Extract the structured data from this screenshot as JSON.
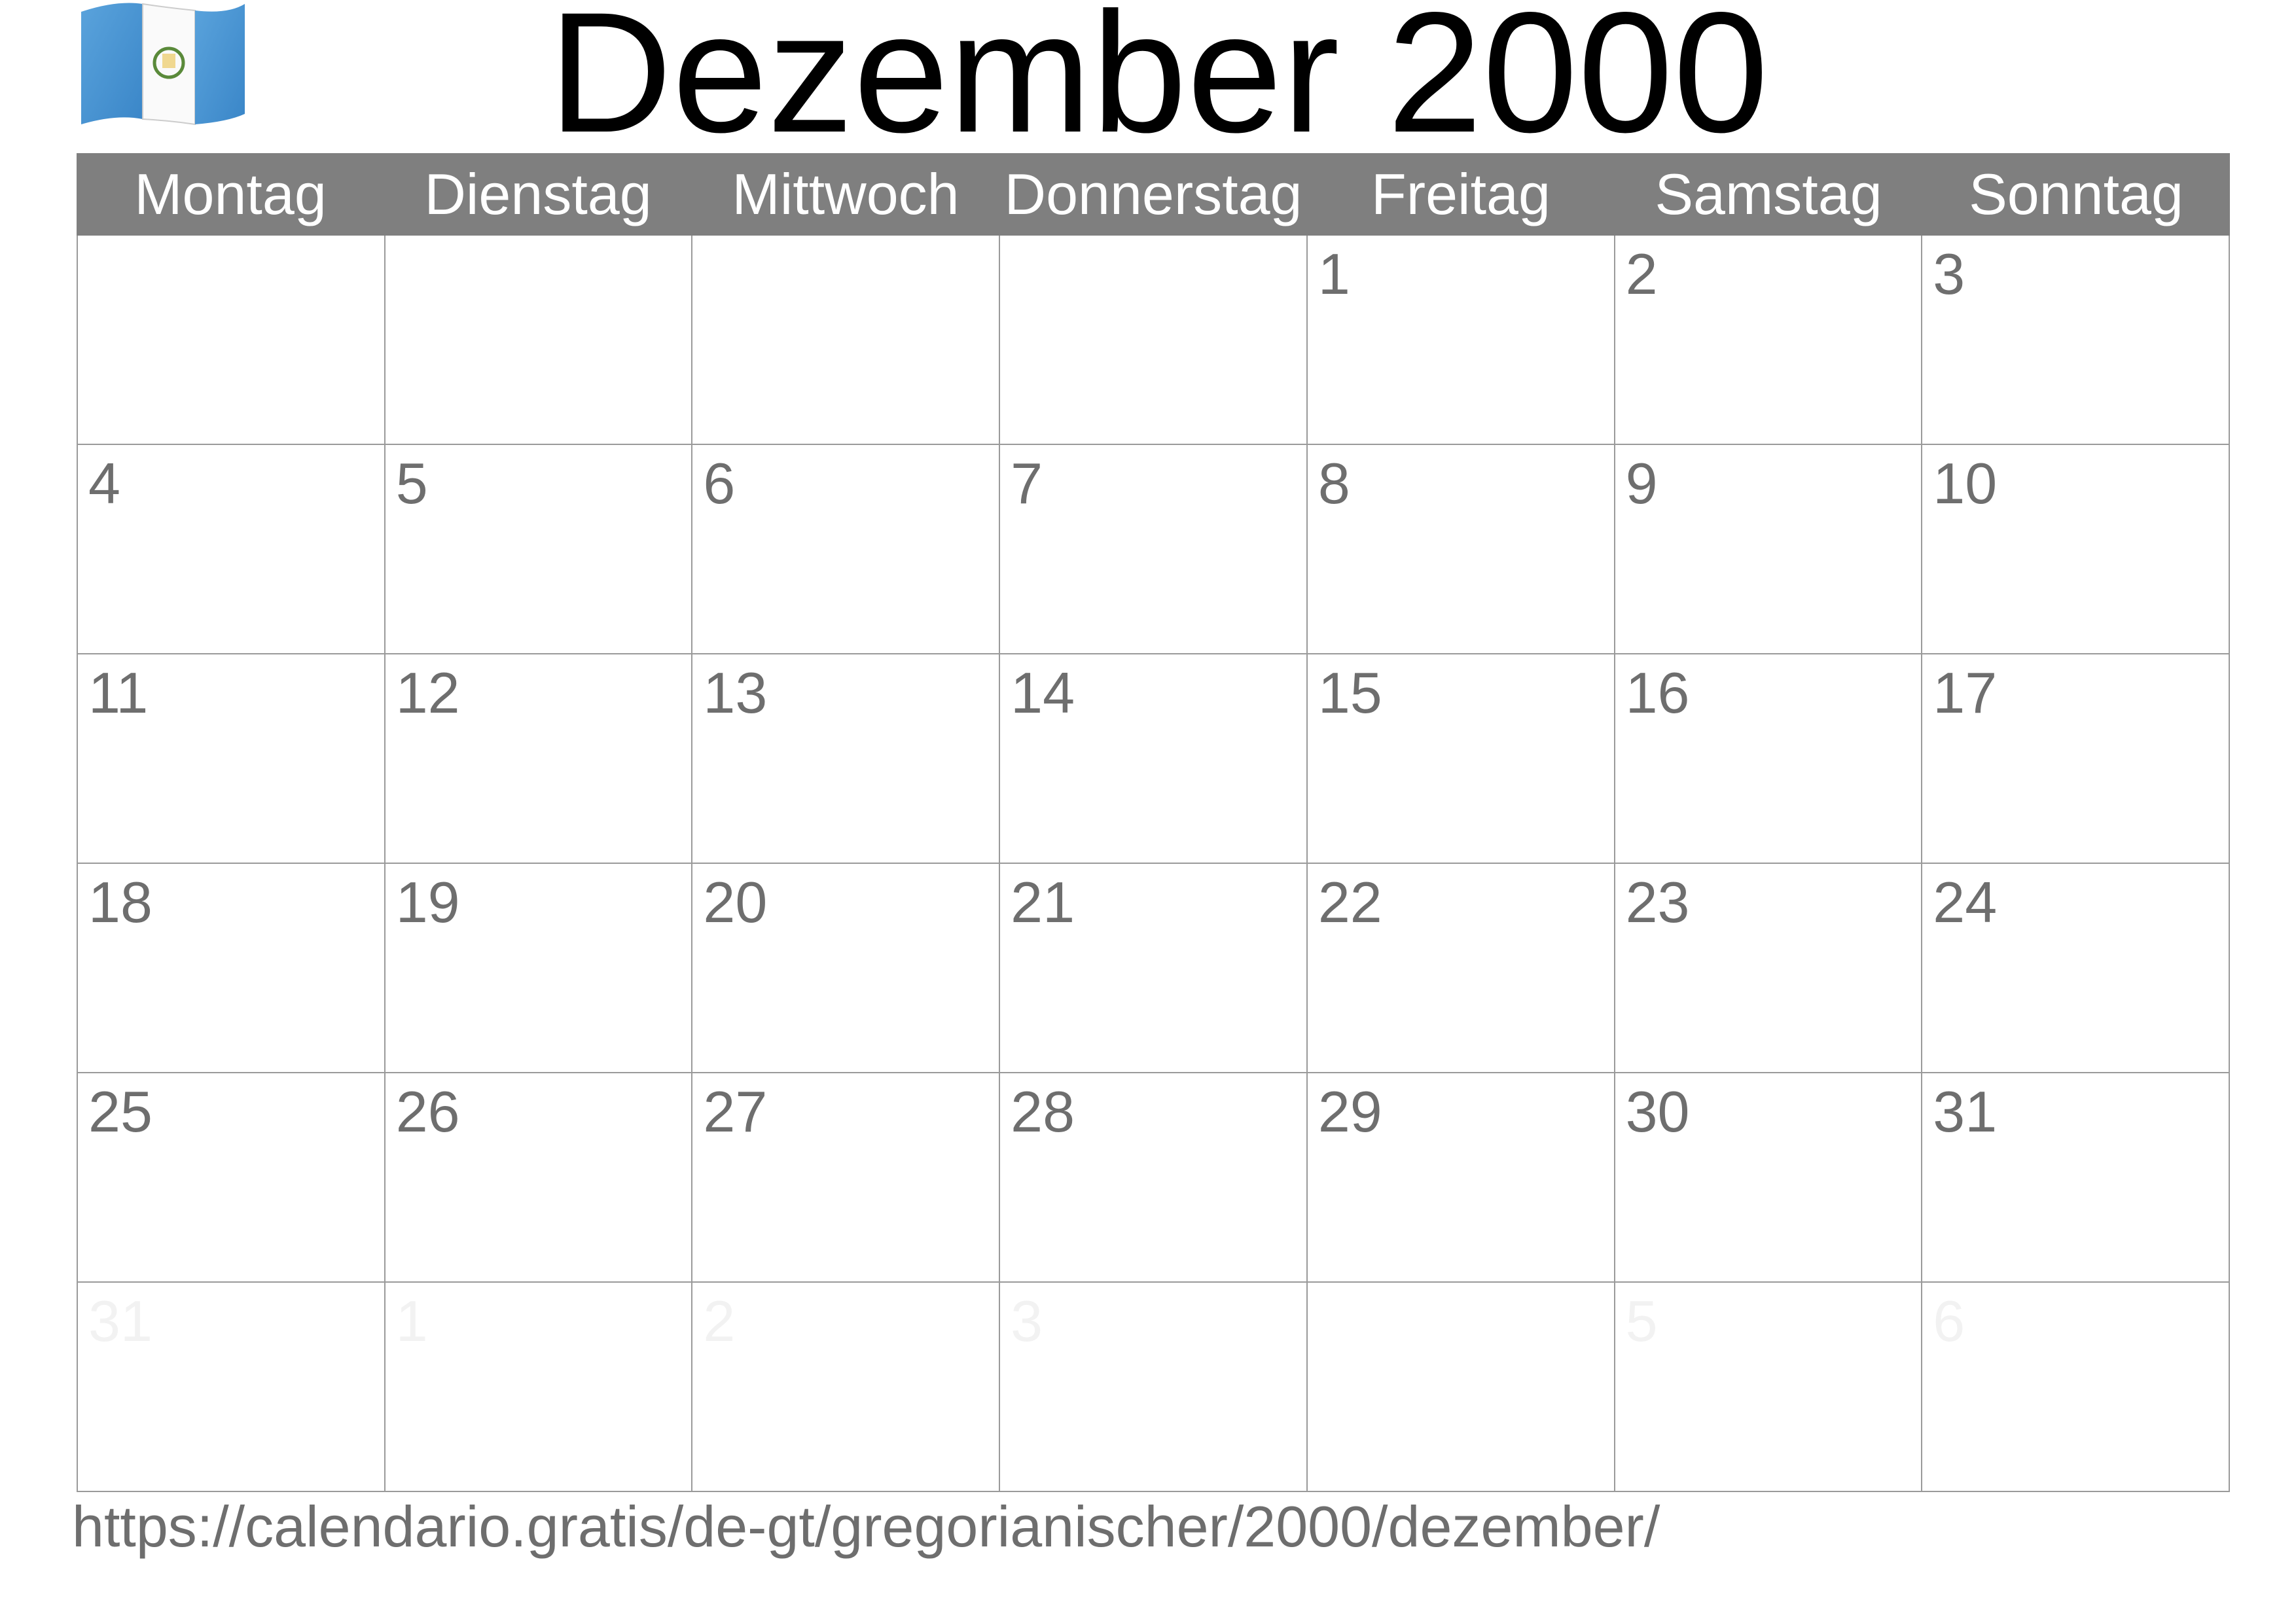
{
  "title": "Dezember 2000",
  "flag": {
    "country": "Guatemala",
    "colors": [
      "#4997d0",
      "#ffffff"
    ]
  },
  "weekdays": [
    "Montag",
    "Dienstag",
    "Mittwoch",
    "Donnerstag",
    "Freitag",
    "Samstag",
    "Sonntag"
  ],
  "days": [
    "",
    "",
    "",
    "",
    "1",
    "2",
    "3",
    "4",
    "5",
    "6",
    "7",
    "8",
    "9",
    "10",
    "11",
    "12",
    "13",
    "14",
    "15",
    "16",
    "17",
    "18",
    "19",
    "20",
    "21",
    "22",
    "23",
    "24",
    "25",
    "26",
    "27",
    "28",
    "29",
    "30",
    "31"
  ],
  "ghost_days": [
    "31",
    "1",
    "2",
    "3",
    "",
    "5",
    "6"
  ],
  "url": "https://calendario.gratis/de-gt/gregorianischer/2000/dezember/",
  "colors": {
    "header_bg": "#7f7f7f",
    "day_number": "#6e6e6e",
    "grid_line": "#9a9a9a"
  }
}
